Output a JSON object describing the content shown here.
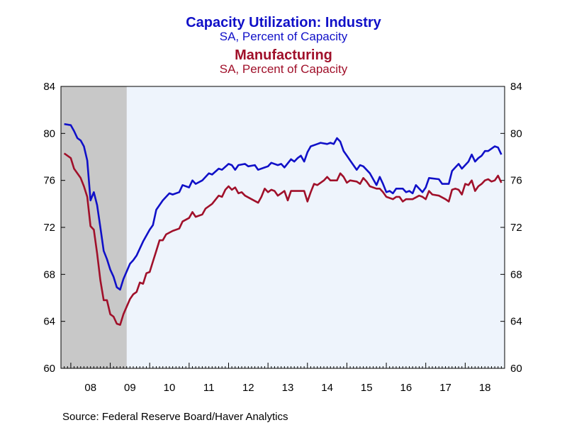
{
  "titles": {
    "series1_title": "Capacity Utilization: Industry",
    "series1_subtitle": "SA, Percent of Capacity",
    "series2_title": "Manufacturing",
    "series2_subtitle": "SA, Percent of Capacity"
  },
  "source": "Source:  Federal Reserve Board/Haver Analytics",
  "colors": {
    "series1": "#1010c8",
    "series2": "#a0102a",
    "plot_background": "#eef4fc",
    "recession_shade": "#c8c8c8"
  },
  "chart_data": {
    "type": "line",
    "x_unit": "decimal year",
    "xlim": [
      2007.75,
      2019.0
    ],
    "ylim": [
      60,
      84
    ],
    "y_ticks": [
      60,
      64,
      68,
      72,
      76,
      80,
      84
    ],
    "x_tick_labels": [
      "08",
      "09",
      "10",
      "11",
      "12",
      "13",
      "14",
      "15",
      "16",
      "17",
      "18"
    ],
    "y_axis_both_sides": true,
    "grid": false,
    "legend": "titles-above",
    "recession_shading": [
      2007.917,
      2009.417
    ],
    "series": [
      {
        "name": "Capacity Utilization: Industry",
        "points": [
          [
            2007.833,
            80.8
          ],
          [
            2008.0,
            80.7
          ],
          [
            2008.083,
            80.2
          ],
          [
            2008.167,
            79.6
          ],
          [
            2008.25,
            79.4
          ],
          [
            2008.333,
            78.9
          ],
          [
            2008.417,
            77.7
          ],
          [
            2008.5,
            74.3
          ],
          [
            2008.583,
            75.0
          ],
          [
            2008.667,
            73.9
          ],
          [
            2008.75,
            72.0
          ],
          [
            2008.833,
            70.0
          ],
          [
            2008.917,
            69.3
          ],
          [
            2009.0,
            68.4
          ],
          [
            2009.083,
            67.8
          ],
          [
            2009.167,
            66.9
          ],
          [
            2009.25,
            66.7
          ],
          [
            2009.333,
            67.6
          ],
          [
            2009.5,
            68.9
          ],
          [
            2009.583,
            69.2
          ],
          [
            2009.667,
            69.6
          ],
          [
            2009.833,
            70.8
          ],
          [
            2010.0,
            71.8
          ],
          [
            2010.083,
            72.2
          ],
          [
            2010.167,
            73.5
          ],
          [
            2010.333,
            74.3
          ],
          [
            2010.5,
            74.9
          ],
          [
            2010.583,
            74.8
          ],
          [
            2010.75,
            75.0
          ],
          [
            2010.833,
            75.6
          ],
          [
            2011.0,
            75.4
          ],
          [
            2011.083,
            76.0
          ],
          [
            2011.167,
            75.7
          ],
          [
            2011.333,
            76.0
          ],
          [
            2011.5,
            76.6
          ],
          [
            2011.583,
            76.5
          ],
          [
            2011.75,
            77.0
          ],
          [
            2011.833,
            76.9
          ],
          [
            2012.0,
            77.4
          ],
          [
            2012.083,
            77.3
          ],
          [
            2012.167,
            76.9
          ],
          [
            2012.25,
            77.3
          ],
          [
            2012.417,
            77.4
          ],
          [
            2012.5,
            77.2
          ],
          [
            2012.667,
            77.3
          ],
          [
            2012.75,
            76.9
          ],
          [
            2012.917,
            77.1
          ],
          [
            2013.0,
            77.2
          ],
          [
            2013.083,
            77.5
          ],
          [
            2013.25,
            77.3
          ],
          [
            2013.333,
            77.4
          ],
          [
            2013.417,
            77.1
          ],
          [
            2013.583,
            77.8
          ],
          [
            2013.667,
            77.6
          ],
          [
            2013.75,
            77.9
          ],
          [
            2013.833,
            78.1
          ],
          [
            2013.917,
            77.6
          ],
          [
            2014.0,
            78.4
          ],
          [
            2014.083,
            78.9
          ],
          [
            2014.25,
            79.1
          ],
          [
            2014.333,
            79.2
          ],
          [
            2014.5,
            79.1
          ],
          [
            2014.583,
            79.2
          ],
          [
            2014.667,
            79.1
          ],
          [
            2014.75,
            79.6
          ],
          [
            2014.833,
            79.3
          ],
          [
            2014.917,
            78.5
          ],
          [
            2015.0,
            78.1
          ],
          [
            2015.083,
            77.7
          ],
          [
            2015.25,
            76.9
          ],
          [
            2015.333,
            77.3
          ],
          [
            2015.417,
            77.2
          ],
          [
            2015.583,
            76.6
          ],
          [
            2015.75,
            75.6
          ],
          [
            2015.833,
            76.3
          ],
          [
            2015.917,
            75.7
          ],
          [
            2016.0,
            75.0
          ],
          [
            2016.083,
            75.1
          ],
          [
            2016.167,
            74.9
          ],
          [
            2016.25,
            75.3
          ],
          [
            2016.417,
            75.3
          ],
          [
            2016.5,
            75.0
          ],
          [
            2016.583,
            75.1
          ],
          [
            2016.667,
            74.9
          ],
          [
            2016.75,
            75.6
          ],
          [
            2016.833,
            75.3
          ],
          [
            2016.917,
            75.0
          ],
          [
            2017.0,
            75.4
          ],
          [
            2017.083,
            76.2
          ],
          [
            2017.333,
            76.1
          ],
          [
            2017.417,
            75.7
          ],
          [
            2017.583,
            75.7
          ],
          [
            2017.667,
            76.8
          ],
          [
            2017.75,
            77.1
          ],
          [
            2017.833,
            77.4
          ],
          [
            2017.917,
            77.0
          ],
          [
            2018.083,
            77.6
          ],
          [
            2018.167,
            78.2
          ],
          [
            2018.25,
            77.6
          ],
          [
            2018.333,
            77.9
          ],
          [
            2018.417,
            78.1
          ],
          [
            2018.5,
            78.5
          ],
          [
            2018.583,
            78.5
          ],
          [
            2018.75,
            78.9
          ],
          [
            2018.833,
            78.8
          ],
          [
            2018.917,
            78.2
          ]
        ]
      },
      {
        "name": "Manufacturing",
        "points": [
          [
            2007.833,
            78.3
          ],
          [
            2008.0,
            77.9
          ],
          [
            2008.083,
            77.0
          ],
          [
            2008.167,
            76.6
          ],
          [
            2008.25,
            76.2
          ],
          [
            2008.333,
            75.5
          ],
          [
            2008.417,
            74.6
          ],
          [
            2008.5,
            72.1
          ],
          [
            2008.583,
            71.8
          ],
          [
            2008.667,
            69.8
          ],
          [
            2008.75,
            67.5
          ],
          [
            2008.833,
            65.8
          ],
          [
            2008.917,
            65.8
          ],
          [
            2009.0,
            64.6
          ],
          [
            2009.083,
            64.4
          ],
          [
            2009.167,
            63.8
          ],
          [
            2009.25,
            63.7
          ],
          [
            2009.333,
            64.6
          ],
          [
            2009.5,
            65.9
          ],
          [
            2009.583,
            66.3
          ],
          [
            2009.667,
            66.5
          ],
          [
            2009.75,
            67.3
          ],
          [
            2009.833,
            67.2
          ],
          [
            2009.917,
            68.1
          ],
          [
            2010.0,
            68.2
          ],
          [
            2010.083,
            69.1
          ],
          [
            2010.167,
            70.0
          ],
          [
            2010.25,
            70.9
          ],
          [
            2010.333,
            70.9
          ],
          [
            2010.417,
            71.4
          ],
          [
            2010.583,
            71.7
          ],
          [
            2010.75,
            71.9
          ],
          [
            2010.833,
            72.5
          ],
          [
            2011.0,
            72.8
          ],
          [
            2011.083,
            73.3
          ],
          [
            2011.167,
            72.9
          ],
          [
            2011.333,
            73.1
          ],
          [
            2011.417,
            73.6
          ],
          [
            2011.583,
            74.0
          ],
          [
            2011.75,
            74.7
          ],
          [
            2011.833,
            74.6
          ],
          [
            2011.917,
            75.2
          ],
          [
            2012.0,
            75.5
          ],
          [
            2012.083,
            75.2
          ],
          [
            2012.167,
            75.4
          ],
          [
            2012.25,
            74.9
          ],
          [
            2012.333,
            75.0
          ],
          [
            2012.417,
            74.7
          ],
          [
            2012.583,
            74.4
          ],
          [
            2012.75,
            74.1
          ],
          [
            2012.833,
            74.6
          ],
          [
            2012.917,
            75.3
          ],
          [
            2013.0,
            75.0
          ],
          [
            2013.083,
            75.2
          ],
          [
            2013.167,
            75.1
          ],
          [
            2013.25,
            74.7
          ],
          [
            2013.333,
            74.9
          ],
          [
            2013.417,
            75.1
          ],
          [
            2013.5,
            74.3
          ],
          [
            2013.583,
            75.1
          ],
          [
            2013.75,
            75.1
          ],
          [
            2013.917,
            75.1
          ],
          [
            2014.0,
            74.2
          ],
          [
            2014.083,
            75.0
          ],
          [
            2014.167,
            75.7
          ],
          [
            2014.25,
            75.6
          ],
          [
            2014.417,
            76.0
          ],
          [
            2014.5,
            76.3
          ],
          [
            2014.583,
            76.0
          ],
          [
            2014.75,
            76.0
          ],
          [
            2014.833,
            76.6
          ],
          [
            2014.917,
            76.3
          ],
          [
            2015.0,
            75.8
          ],
          [
            2015.083,
            76.0
          ],
          [
            2015.25,
            75.9
          ],
          [
            2015.333,
            75.7
          ],
          [
            2015.417,
            76.2
          ],
          [
            2015.5,
            75.9
          ],
          [
            2015.583,
            75.5
          ],
          [
            2015.75,
            75.3
          ],
          [
            2015.833,
            75.3
          ],
          [
            2015.917,
            75.0
          ],
          [
            2016.0,
            74.6
          ],
          [
            2016.083,
            74.5
          ],
          [
            2016.167,
            74.4
          ],
          [
            2016.25,
            74.6
          ],
          [
            2016.333,
            74.6
          ],
          [
            2016.417,
            74.2
          ],
          [
            2016.5,
            74.4
          ],
          [
            2016.667,
            74.4
          ],
          [
            2016.833,
            74.7
          ],
          [
            2016.917,
            74.6
          ],
          [
            2017.0,
            74.4
          ],
          [
            2017.083,
            75.1
          ],
          [
            2017.167,
            74.8
          ],
          [
            2017.333,
            74.7
          ],
          [
            2017.5,
            74.4
          ],
          [
            2017.583,
            74.2
          ],
          [
            2017.667,
            75.2
          ],
          [
            2017.75,
            75.3
          ],
          [
            2017.833,
            75.2
          ],
          [
            2017.917,
            74.8
          ],
          [
            2018.0,
            75.7
          ],
          [
            2018.083,
            75.6
          ],
          [
            2018.167,
            76.0
          ],
          [
            2018.25,
            75.1
          ],
          [
            2018.333,
            75.5
          ],
          [
            2018.417,
            75.7
          ],
          [
            2018.5,
            76.0
          ],
          [
            2018.583,
            76.1
          ],
          [
            2018.667,
            75.9
          ],
          [
            2018.75,
            76.0
          ],
          [
            2018.833,
            76.4
          ],
          [
            2018.917,
            75.8
          ]
        ]
      }
    ]
  }
}
